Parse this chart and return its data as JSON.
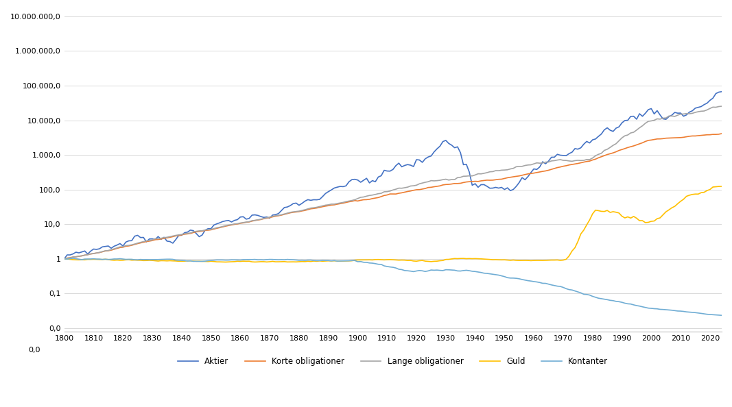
{
  "x_start": 1800,
  "x_end": 2024,
  "x_ticks": [
    1800,
    1810,
    1820,
    1830,
    1840,
    1850,
    1860,
    1870,
    1880,
    1890,
    1900,
    1910,
    1920,
    1930,
    1940,
    1950,
    1960,
    1970,
    1980,
    1990,
    2000,
    2010,
    2020
  ],
  "ylim_bottom": 0.008,
  "ylim_top": 15000000,
  "series": {
    "Aktier": {
      "color": "#4472C4",
      "linewidth": 1.2
    },
    "Korte obligationer": {
      "color": "#ED7D31",
      "linewidth": 1.2
    },
    "Lange obligationer": {
      "color": "#A5A5A5",
      "linewidth": 1.2
    },
    "Guld": {
      "color": "#FFC000",
      "linewidth": 1.2
    },
    "Kontanter": {
      "color": "#70ADD4",
      "linewidth": 1.2
    }
  },
  "background_color": "#FFFFFF",
  "grid_color": "#D9D9D9"
}
